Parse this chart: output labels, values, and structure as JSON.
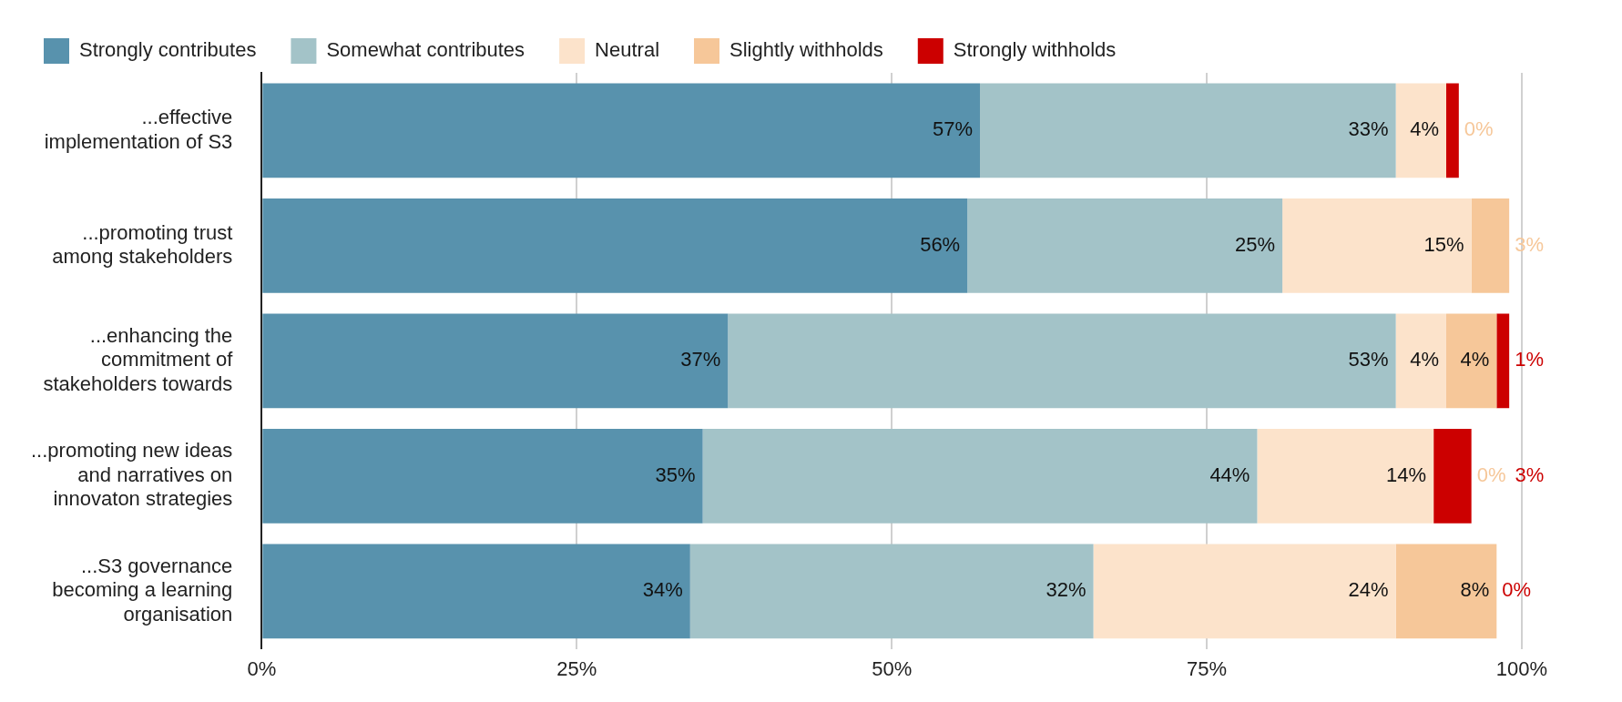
{
  "chart_data": {
    "type": "bar",
    "orientation": "horizontal",
    "stacked": true,
    "categories": [
      "...effective implementation of S3",
      "...promoting trust among stakeholders",
      "...enhancing the commitment of stakeholders towards",
      "...promoting new ideas and narratives on innovaton strategies",
      "...S3 governance becoming a learning organisation"
    ],
    "series": [
      {
        "name": "Strongly contributes",
        "color": "#5892ad",
        "values": [
          57,
          56,
          37,
          35,
          34
        ],
        "value_labels": [
          "57%",
          "56%",
          "37%",
          "35%",
          "34%"
        ]
      },
      {
        "name": "Somewhat contributes",
        "color": "#a3c3c8",
        "values": [
          33,
          25,
          53,
          44,
          32
        ],
        "value_labels": [
          "33%",
          "25%",
          "53%",
          "44%",
          "32%"
        ]
      },
      {
        "name": "Neutral",
        "color": "#fce3cb",
        "values": [
          4,
          15,
          4,
          14,
          24
        ],
        "value_labels": [
          "4%",
          "15%",
          "4%",
          "14%",
          "24%"
        ]
      },
      {
        "name": "Slightly withholds",
        "color": "#f6c799",
        "values": [
          0,
          3,
          4,
          0,
          8
        ],
        "value_labels": [
          "0%",
          "3%",
          "4%",
          "0%",
          "8%"
        ]
      },
      {
        "name": "Strongly withholds",
        "color": "#cc0000",
        "values": [
          1,
          0,
          1,
          3,
          0
        ],
        "value_labels": [
          null,
          null,
          "1%",
          "3%",
          "0%"
        ]
      }
    ],
    "xlim": [
      0,
      100
    ],
    "xticks": [
      {
        "value": 0,
        "label": "0%"
      },
      {
        "value": 25,
        "label": "25%"
      },
      {
        "value": 50,
        "label": "50%"
      },
      {
        "value": 75,
        "label": "75%"
      },
      {
        "value": 100,
        "label": "100%"
      }
    ],
    "grid": "x",
    "legend": "top left"
  }
}
